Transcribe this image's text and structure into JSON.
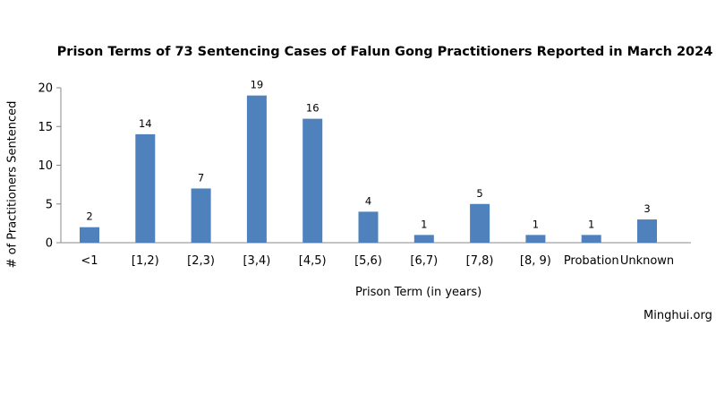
{
  "chart_data": {
    "type": "bar",
    "title": "Prison Terms of 73 Sentencing Cases of Falun Gong Practitioners Reported in March 2024",
    "xlabel": "Prison Term (in years)",
    "ylabel": "# of Practitioners Sentenced",
    "categories": [
      "<1",
      "[1,2)",
      "[2,3)",
      "[3,4)",
      "[4,5)",
      "[5,6)",
      "[6,7)",
      "[7,8)",
      "[8, 9)",
      "Probation",
      "Unknown"
    ],
    "values": [
      2,
      14,
      7,
      19,
      16,
      4,
      1,
      5,
      1,
      1,
      3
    ],
    "ylim": [
      0,
      20
    ],
    "yticks": [
      0,
      5,
      10,
      15,
      20
    ],
    "grid": false,
    "legend": "none",
    "bar_color": "#4f81bd"
  },
  "source_text": "Minghui.org"
}
